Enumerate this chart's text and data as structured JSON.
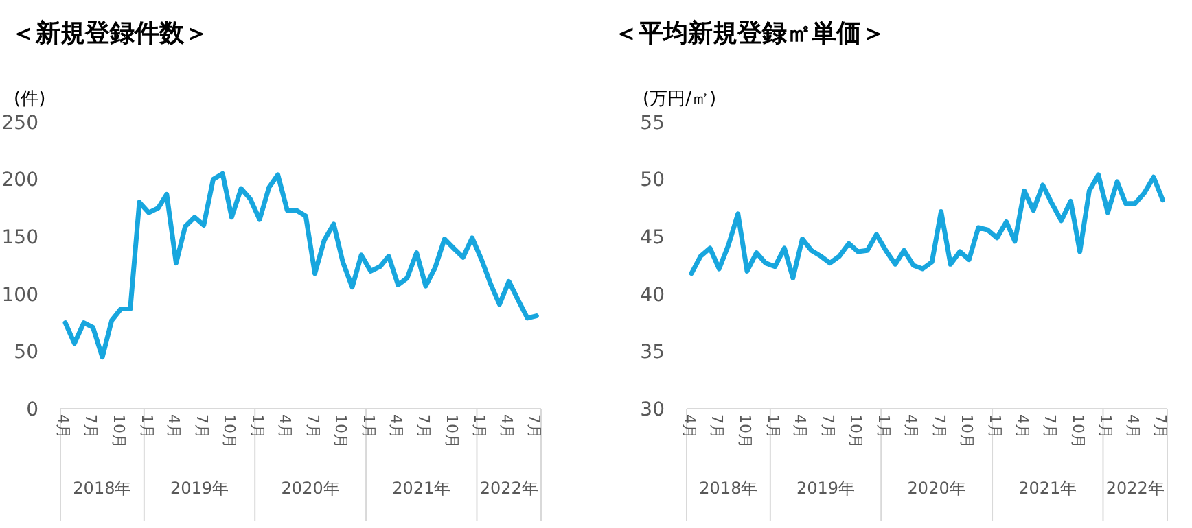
{
  "chart_data": [
    {
      "type": "line",
      "title": "＜新規登録件数＞",
      "ylabel": "(件)",
      "x": [
        "2018-04",
        "2018-05",
        "2018-06",
        "2018-07",
        "2018-08",
        "2018-09",
        "2018-10",
        "2018-11",
        "2018-12",
        "2019-01",
        "2019-02",
        "2019-03",
        "2019-04",
        "2019-05",
        "2019-06",
        "2019-07",
        "2019-08",
        "2019-09",
        "2019-10",
        "2019-11",
        "2019-12",
        "2020-01",
        "2020-02",
        "2020-03",
        "2020-04",
        "2020-05",
        "2020-06",
        "2020-07",
        "2020-08",
        "2020-09",
        "2020-10",
        "2020-11",
        "2020-12",
        "2021-01",
        "2021-02",
        "2021-03",
        "2021-04",
        "2021-05",
        "2021-06",
        "2021-07",
        "2021-08",
        "2021-09",
        "2021-10",
        "2021-11",
        "2021-12",
        "2022-01",
        "2022-02",
        "2022-03",
        "2022-04",
        "2022-05",
        "2022-06",
        "2022-07"
      ],
      "series": [
        {
          "color": "#18a6de",
          "values": [
            75,
            57,
            75,
            71,
            45,
            77,
            87,
            87,
            180,
            171,
            175,
            187,
            127,
            159,
            167,
            160,
            200,
            205,
            167,
            192,
            183,
            165,
            193,
            204,
            173,
            173,
            168,
            118,
            147,
            161,
            128,
            106,
            134,
            120,
            124,
            133,
            108,
            114,
            136,
            107,
            123,
            148,
            140,
            132,
            149,
            130,
            108,
            91,
            111,
            95,
            79,
            81
          ]
        }
      ],
      "xlim": [
        "2018-03-16",
        "2022-07-16"
      ],
      "ylim": [
        0,
        250
      ],
      "yticks": [
        0,
        50,
        100,
        150,
        200,
        250
      ],
      "xticks": [
        {
          "value": "2018-04",
          "label": "4月"
        },
        {
          "value": "2018-07",
          "label": "7月"
        },
        {
          "value": "2018-10",
          "label": "10月"
        },
        {
          "value": "2019-01",
          "label": "1月"
        },
        {
          "value": "2019-04",
          "label": "4月"
        },
        {
          "value": "2019-07",
          "label": "7月"
        },
        {
          "value": "2019-10",
          "label": "10月"
        },
        {
          "value": "2020-01",
          "label": "1月"
        },
        {
          "value": "2020-04",
          "label": "4月"
        },
        {
          "value": "2020-07",
          "label": "7月"
        },
        {
          "value": "2020-10",
          "label": "10月"
        },
        {
          "value": "2021-01",
          "label": "1月"
        },
        {
          "value": "2021-04",
          "label": "4月"
        },
        {
          "value": "2021-07",
          "label": "7月"
        },
        {
          "value": "2021-10",
          "label": "10月"
        },
        {
          "value": "2022-01",
          "label": "1月"
        },
        {
          "value": "2022-04",
          "label": "4月"
        },
        {
          "value": "2022-07",
          "label": "7月"
        }
      ],
      "annotations": [
        "2018年",
        "2019年",
        "2020年",
        "2021年",
        "2022年"
      ]
    },
    {
      "type": "line",
      "title": "＜平均新規登録㎡単価＞",
      "ylabel": "(万円/㎡)",
      "x": [
        "2018-04",
        "2018-05",
        "2018-06",
        "2018-07",
        "2018-08",
        "2018-09",
        "2018-10",
        "2018-11",
        "2018-12",
        "2019-01",
        "2019-02",
        "2019-03",
        "2019-04",
        "2019-05",
        "2019-06",
        "2019-07",
        "2019-08",
        "2019-09",
        "2019-10",
        "2019-11",
        "2019-12",
        "2020-01",
        "2020-02",
        "2020-03",
        "2020-04",
        "2020-05",
        "2020-06",
        "2020-07",
        "2020-08",
        "2020-09",
        "2020-10",
        "2020-11",
        "2020-12",
        "2021-01",
        "2021-02",
        "2021-03",
        "2021-04",
        "2021-05",
        "2021-06",
        "2021-07",
        "2021-08",
        "2021-09",
        "2021-10",
        "2021-11",
        "2021-12",
        "2022-01",
        "2022-02",
        "2022-03",
        "2022-04",
        "2022-05",
        "2022-06",
        "2022-07"
      ],
      "series": [
        {
          "color": "#18a6de",
          "values": [
            41.8,
            43.3,
            44.0,
            42.2,
            44.3,
            47.0,
            42.0,
            43.6,
            42.7,
            42.4,
            44.0,
            41.4,
            44.8,
            43.8,
            43.3,
            42.7,
            43.3,
            44.4,
            43.7,
            43.8,
            45.2,
            43.8,
            42.6,
            43.8,
            42.5,
            42.2,
            42.8,
            47.2,
            42.6,
            43.7,
            43.0,
            45.8,
            45.6,
            44.9,
            46.3,
            44.6,
            49.0,
            47.3,
            49.5,
            47.9,
            46.4,
            48.1,
            43.7,
            49.0,
            50.4,
            47.1,
            49.8,
            47.9,
            47.9,
            48.8,
            50.2,
            48.2
          ]
        }
      ],
      "xlim": [
        "2018-03-16",
        "2022-07-16"
      ],
      "ylim": [
        30,
        55
      ],
      "yticks": [
        30,
        35,
        40,
        45,
        50,
        55
      ],
      "xticks": [
        {
          "value": "2018-04",
          "label": "4月"
        },
        {
          "value": "2018-07",
          "label": "7月"
        },
        {
          "value": "2018-10",
          "label": "10月"
        },
        {
          "value": "2019-01",
          "label": "1月"
        },
        {
          "value": "2019-04",
          "label": "4月"
        },
        {
          "value": "2019-07",
          "label": "7月"
        },
        {
          "value": "2019-10",
          "label": "10月"
        },
        {
          "value": "2020-01",
          "label": "1月"
        },
        {
          "value": "2020-04",
          "label": "4月"
        },
        {
          "value": "2020-07",
          "label": "7月"
        },
        {
          "value": "2020-10",
          "label": "10月"
        },
        {
          "value": "2021-01",
          "label": "1月"
        },
        {
          "value": "2021-04",
          "label": "4月"
        },
        {
          "value": "2021-07",
          "label": "7月"
        },
        {
          "value": "2021-10",
          "label": "10月"
        },
        {
          "value": "2022-01",
          "label": "1月"
        },
        {
          "value": "2022-04",
          "label": "4月"
        },
        {
          "value": "2022-07",
          "label": "7月"
        }
      ],
      "annotations": [
        "2018年",
        "2019年",
        "2020年",
        "2021年",
        "2022年"
      ]
    }
  ]
}
